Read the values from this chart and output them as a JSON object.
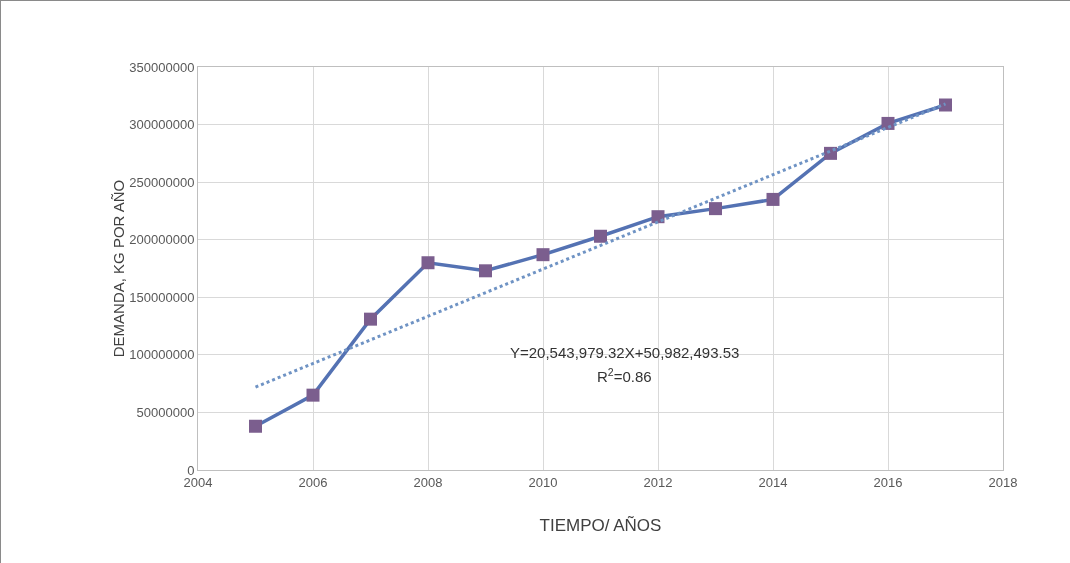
{
  "chart_data": {
    "type": "line",
    "xlabel": "TIEMPO/ AÑOS",
    "ylabel": "DEMANDA, KG POR AÑO",
    "x": [
      2005,
      2006,
      2007,
      2008,
      2009,
      2010,
      2011,
      2012,
      2013,
      2014,
      2015,
      2016,
      2017
    ],
    "series": [
      {
        "color": "#5472b3",
        "colors": [
          "#7b5e8e",
          "#7b5e8e",
          "#7b5e8e",
          "#7b5e8e",
          "#7b5e8e",
          "#7b5e8e",
          "#7b5e8e",
          "#7b5e8e",
          "#7b5e8e",
          "#7b5e8e",
          "#7b5e8e",
          "#7b5e8e",
          "#7b5e8e"
        ],
        "marker": "square",
        "line_style": "solid",
        "values": [
          38000000,
          65000000,
          131000000,
          180000000,
          173000000,
          187000000,
          203000000,
          220000000,
          227000000,
          235000000,
          275000000,
          301000000,
          317000000
        ]
      },
      {
        "type": "line",
        "x": [
          2005,
          2017
        ],
        "color": "#6f93c4",
        "marker": "none",
        "line_style": "dotted",
        "values": [
          72000000,
          318000000
        ]
      }
    ],
    "annotations": [
      "Y=20,543,979.32X+50,982,493.53",
      "R$^{2}$=0.86"
    ],
    "xlim": [
      2004,
      2018
    ],
    "xticks": [
      2004,
      2006,
      2008,
      2010,
      2012,
      2014,
      2016,
      2018
    ],
    "ylim": [
      0,
      350000000
    ],
    "yticks": [
      0,
      50000000,
      100000000,
      150000000,
      200000000,
      250000000,
      300000000,
      350000000
    ],
    "grid": true
  }
}
